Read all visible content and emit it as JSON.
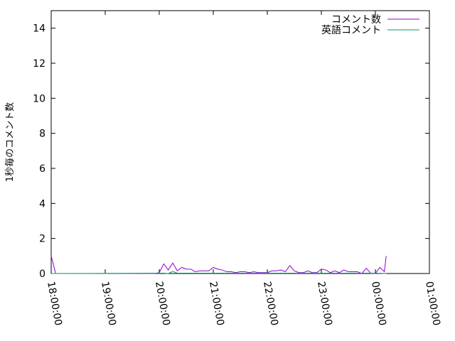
{
  "chart_data": {
    "type": "line",
    "title": "",
    "xlabel": "",
    "ylabel": "1秒毎のコメント数",
    "ylim": [
      0,
      15
    ],
    "xlim": [
      "18:00:00",
      "01:00:00"
    ],
    "grid": false,
    "legend_placement": "top-right",
    "yticks": [
      "0",
      "2",
      "4",
      "6",
      "8",
      "10",
      "12",
      "14"
    ],
    "xticks": [
      "18:00:00",
      "19:00:00",
      "20:00:00",
      "21:00:00",
      "22:00:00",
      "23:00:00",
      "00:00:00",
      "01:00:00"
    ],
    "series": [
      {
        "name": "コメント数",
        "color": "#9400d3",
        "x": [
          "18:00:00",
          "18:05:00",
          "19:55:00",
          "20:00:00",
          "20:05:00",
          "20:10:00",
          "20:15:00",
          "20:20:00",
          "20:25:00",
          "20:30:00",
          "20:35:00",
          "20:40:00",
          "20:45:00",
          "20:50:00",
          "20:55:00",
          "21:00:00",
          "21:05:00",
          "21:10:00",
          "21:15:00",
          "21:20:00",
          "21:25:00",
          "21:30:00",
          "21:35:00",
          "21:40:00",
          "21:45:00",
          "21:50:00",
          "21:55:00",
          "22:00:00",
          "22:05:00",
          "22:10:00",
          "22:15:00",
          "22:20:00",
          "22:25:00",
          "22:30:00",
          "22:35:00",
          "22:40:00",
          "22:45:00",
          "22:50:00",
          "22:55:00",
          "23:00:00",
          "23:05:00",
          "23:10:00",
          "23:15:00",
          "23:20:00",
          "23:25:00",
          "23:30:00",
          "23:35:00",
          "23:40:00",
          "23:45:00",
          "23:50:00",
          "23:55:00",
          "00:00:00",
          "00:05:00",
          "00:10:00",
          "00:12:00"
        ],
        "y": [
          1.0,
          0,
          0,
          0.05,
          0.55,
          0.2,
          0.6,
          0.15,
          0.35,
          0.25,
          0.25,
          0.1,
          0.15,
          0.15,
          0.15,
          0.35,
          0.25,
          0.2,
          0.1,
          0.1,
          0.05,
          0.1,
          0.1,
          0.05,
          0.1,
          0.05,
          0.05,
          0.05,
          0.15,
          0.15,
          0.2,
          0.1,
          0.45,
          0.15,
          0.05,
          0.05,
          0.15,
          0.05,
          0.05,
          0.25,
          0.2,
          0.05,
          0.15,
          0.05,
          0.2,
          0.1,
          0.1,
          0.1,
          0,
          0.3,
          0,
          0,
          0.35,
          0.1,
          1.0
        ]
      },
      {
        "name": "英語コメント",
        "color": "#009e73",
        "x": [
          "18:00:00",
          "20:05:00",
          "20:10:00",
          "20:15:00",
          "20:20:00",
          "20:25:00",
          "21:00:00",
          "21:30:00",
          "22:25:00",
          "22:30:00",
          "23:10:00",
          "23:15:00",
          "00:00:00",
          "00:12:00"
        ],
        "y": [
          0,
          0.02,
          0,
          0.12,
          0.02,
          0.02,
          0.02,
          0.02,
          0.02,
          0.02,
          0.02,
          0.02,
          0.02,
          0
        ]
      }
    ]
  }
}
